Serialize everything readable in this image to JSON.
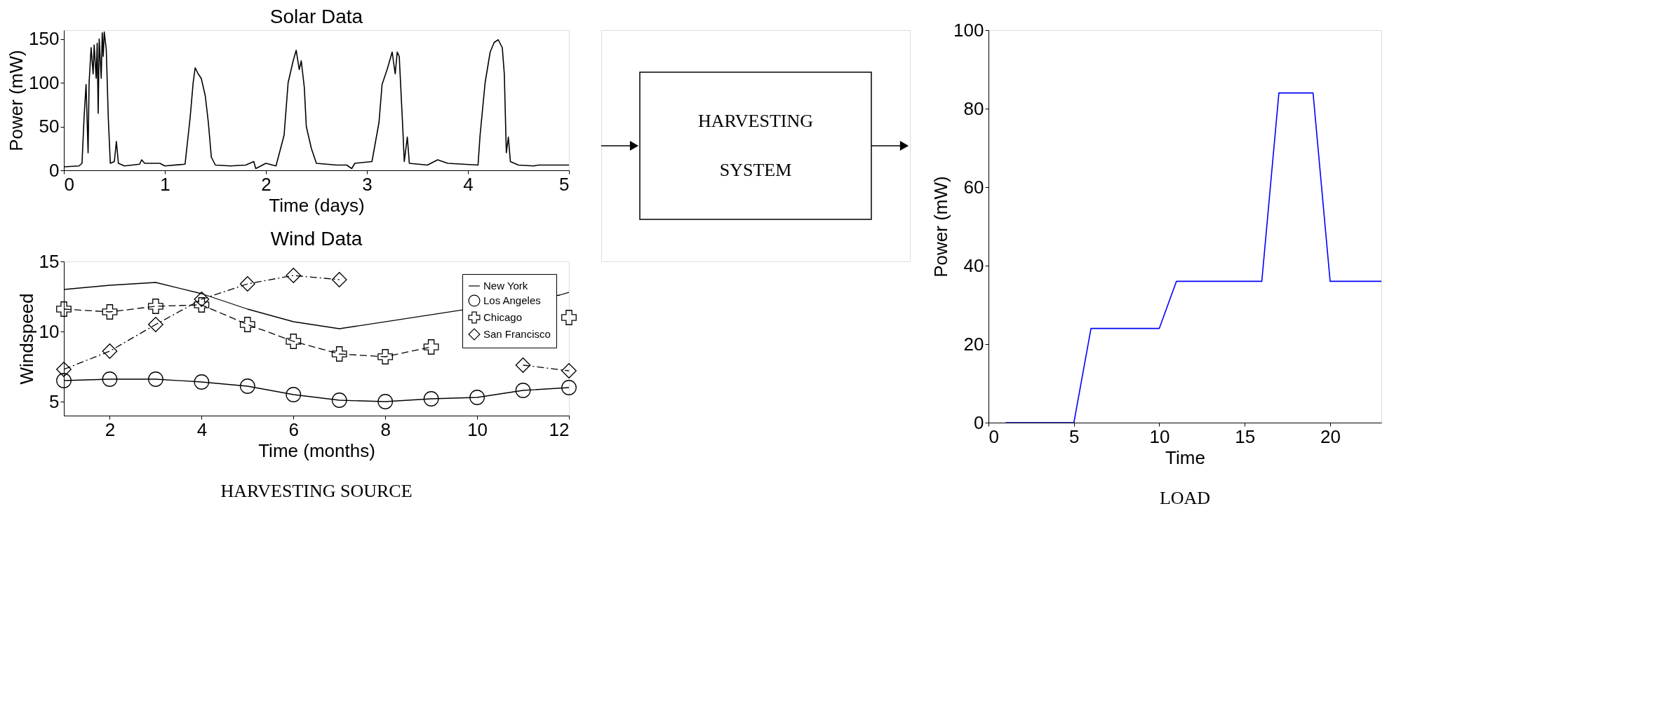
{
  "chart_data": [
    {
      "type": "line",
      "title": "Solar Data",
      "xlabel": "Time (days)",
      "ylabel": "Power (mW)",
      "xlim": [
        0,
        5
      ],
      "ylim": [
        0,
        160
      ],
      "xticks": [
        0,
        1,
        2,
        3,
        4,
        5
      ],
      "yticks": [
        0,
        50,
        100,
        150
      ],
      "grid": false,
      "legend": false,
      "x": [
        0,
        0.15,
        0.18,
        0.2,
        0.22,
        0.24,
        0.25,
        0.27,
        0.29,
        0.3,
        0.32,
        0.33,
        0.34,
        0.35,
        0.37,
        0.38,
        0.39,
        0.4,
        0.42,
        0.44,
        0.46,
        0.5,
        0.52,
        0.54,
        0.6,
        0.75,
        0.77,
        0.8,
        0.95,
        1.0,
        1.2,
        1.25,
        1.28,
        1.3,
        1.33,
        1.36,
        1.4,
        1.43,
        1.46,
        1.5,
        1.65,
        1.8,
        1.88,
        1.9,
        2.0,
        2.1,
        2.18,
        2.22,
        2.27,
        2.3,
        2.33,
        2.35,
        2.38,
        2.4,
        2.45,
        2.5,
        2.7,
        2.8,
        2.85,
        2.88,
        3.05,
        3.12,
        3.15,
        3.2,
        3.25,
        3.28,
        3.3,
        3.32,
        3.35,
        3.37,
        3.4,
        3.42,
        3.6,
        3.7,
        3.8,
        3.95,
        4.1,
        4.12,
        4.17,
        4.22,
        4.26,
        4.3,
        4.34,
        4.36,
        4.38,
        4.4,
        4.42,
        4.5,
        4.65,
        4.7,
        5.0
      ],
      "series": [
        {
          "color": "#000000",
          "values": [
            4,
            5,
            8,
            60,
            98,
            20,
            100,
            140,
            110,
            143,
            105,
            145,
            65,
            150,
            105,
            157,
            130,
            158,
            138,
            60,
            8,
            10,
            33,
            8,
            5,
            7,
            12,
            8,
            8,
            5,
            7,
            60,
            100,
            117,
            110,
            105,
            85,
            55,
            15,
            6,
            5,
            6,
            10,
            2,
            8,
            5,
            40,
            100,
            125,
            137,
            115,
            125,
            95,
            50,
            25,
            8,
            6,
            6,
            2,
            8,
            10,
            55,
            98,
            115,
            135,
            110,
            135,
            130,
            60,
            10,
            38,
            8,
            6,
            12,
            8,
            7,
            6,
            40,
            100,
            135,
            146,
            149,
            140,
            110,
            20,
            38,
            10,
            6,
            5,
            6,
            6
          ]
        }
      ]
    },
    {
      "type": "line",
      "title": "Wind Data",
      "xlabel": "Time (months)",
      "ylabel": "Windspeed",
      "xlim": [
        1,
        12
      ],
      "ylim": [
        4,
        15
      ],
      "xticks": [
        2,
        4,
        6,
        8,
        10,
        12
      ],
      "yticks": [
        5,
        10,
        15
      ],
      "grid": false,
      "legend": "top right",
      "annotations": [
        "HARVESTING SOURCE"
      ],
      "x": [
        1,
        2,
        3,
        4,
        5,
        6,
        7,
        8,
        9,
        10,
        11,
        12
      ],
      "series": [
        {
          "name": "New York",
          "color": "#000000",
          "marker": "none",
          "line_style": "solid",
          "x": [
            1,
            2,
            3,
            4,
            5,
            6,
            7,
            11.8,
            12
          ],
          "values": [
            13.0,
            13.3,
            13.5,
            12.7,
            11.6,
            10.7,
            10.2,
            12.6,
            12.8
          ]
        },
        {
          "name": "Los Angeles",
          "color": "#000000",
          "marker": "circle",
          "line_style": "solid",
          "values": [
            6.5,
            6.6,
            6.6,
            6.4,
            6.1,
            5.5,
            5.1,
            5.0,
            5.2,
            5.3,
            5.8,
            6.0
          ]
        },
        {
          "name": "Chicago",
          "color": "#000000",
          "marker": "cross",
          "line_style": "dashed",
          "values": [
            11.6,
            11.4,
            11.8,
            11.9,
            10.5,
            9.3,
            8.4,
            8.2,
            8.9,
            null,
            null,
            11.0
          ]
        },
        {
          "name": "San Francisco",
          "color": "#000000",
          "marker": "diamond",
          "line_style": "dashdot",
          "values": [
            7.3,
            8.6,
            10.5,
            12.3,
            13.4,
            14.0,
            13.7,
            null,
            null,
            null,
            7.6,
            7.2
          ]
        }
      ]
    },
    {
      "type": "other",
      "annotations": [
        "HARVESTING",
        "SYSTEM"
      ]
    },
    {
      "type": "line",
      "xlabel": "Time",
      "ylabel": "Power (mW)",
      "xlim": [
        0,
        23
      ],
      "ylim": [
        0,
        100
      ],
      "xticks": [
        0,
        5,
        10,
        15,
        20
      ],
      "yticks": [
        0,
        20,
        40,
        60,
        80,
        100
      ],
      "grid": false,
      "legend": false,
      "annotations": [
        "LOAD"
      ],
      "x": [
        1,
        5,
        6,
        10,
        11,
        16,
        17,
        19,
        20,
        23
      ],
      "series": [
        {
          "color": "#0000ff",
          "values": [
            0,
            0,
            24,
            24,
            36,
            36,
            84,
            84,
            36,
            36
          ]
        }
      ]
    }
  ]
}
